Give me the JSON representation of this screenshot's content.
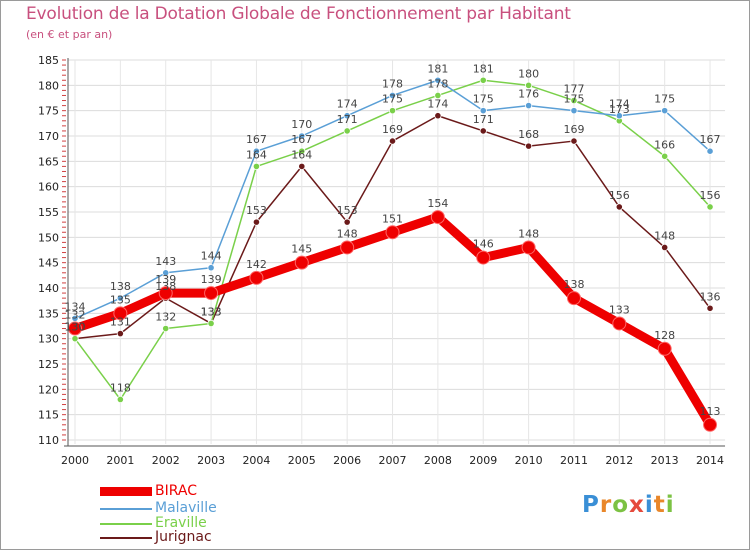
{
  "title": "Evolution de la Dotation Globale de Fonctionnement par Habitant",
  "subtitle": "(en € et par an)",
  "logo": {
    "text": "Proxiti",
    "letters": [
      {
        "ch": "P",
        "color": "#3a8fd6"
      },
      {
        "ch": "r",
        "color": "#e9872a"
      },
      {
        "ch": "o",
        "color": "#7cc243"
      },
      {
        "ch": "x",
        "color": "#e54a3c"
      },
      {
        "ch": "i",
        "color": "#3a8fd6"
      },
      {
        "ch": "t",
        "color": "#e9872a"
      },
      {
        "ch": "i",
        "color": "#7cc243"
      }
    ]
  },
  "chart_data": {
    "type": "line",
    "title": "Evolution de la Dotation Globale de Fonctionnement par Habitant",
    "ylabel": "(en € et par an)",
    "xlabel": "",
    "ylim": [
      110,
      185
    ],
    "yticks": [
      110,
      115,
      120,
      125,
      130,
      135,
      140,
      145,
      150,
      155,
      160,
      165,
      170,
      175,
      180,
      185
    ],
    "categories": [
      "2000",
      "2001",
      "2002",
      "2003",
      "2004",
      "2005",
      "2006",
      "2007",
      "2008",
      "2009",
      "2010",
      "2011",
      "2012",
      "2013",
      "2014"
    ],
    "grid": "horizontal",
    "legend": "bottom-left",
    "series": [
      {
        "name": "Jurignac",
        "color": "#6b1a1a",
        "values": [
          130,
          131,
          138,
          133,
          153,
          164,
          153,
          169,
          174,
          171,
          168,
          169,
          156,
          148,
          136
        ]
      },
      {
        "name": "Eraville",
        "color": "#7ad04a",
        "values": [
          130,
          118,
          132,
          133,
          164,
          167,
          171,
          175,
          178,
          181,
          180,
          177,
          173,
          166,
          156
        ]
      },
      {
        "name": "Malaville",
        "color": "#5a9fd6",
        "values": [
          134,
          138,
          143,
          144,
          167,
          170,
          174,
          178,
          181,
          175,
          176,
          175,
          174,
          175,
          167
        ]
      },
      {
        "name": "BIRAC",
        "color": "#ee0000",
        "values": [
          132,
          135,
          139,
          139,
          142,
          145,
          148,
          151,
          154,
          146,
          148,
          138,
          133,
          128,
          113
        ]
      }
    ],
    "legend_order": [
      "BIRAC",
      "Malaville",
      "Eraville",
      "Jurignac"
    ]
  }
}
